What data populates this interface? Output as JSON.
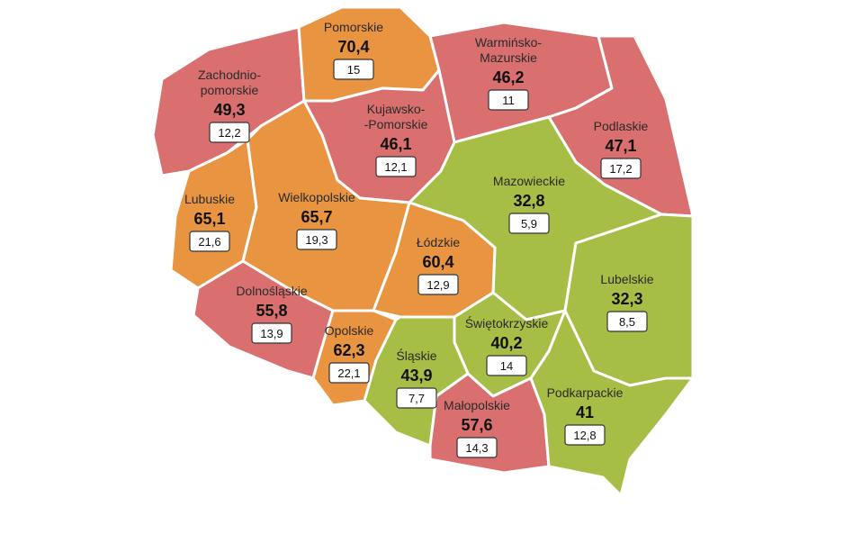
{
  "colors": {
    "red": "#d9706f",
    "orange": "#e99440",
    "green": "#a6bd46"
  },
  "regions": {
    "pomorskie": {
      "name_lines": [
        "Pomorskie"
      ],
      "value": "70,4",
      "box": "15",
      "color": "orange"
    },
    "warminsko": {
      "name_lines": [
        "Warmińsko-",
        "Mazurskie"
      ],
      "value": "46,2",
      "box": "11",
      "color": "red"
    },
    "zachodniopomorskie": {
      "name_lines": [
        "Zachodnio-",
        "pomorskie"
      ],
      "value": "49,3",
      "box": "12,2",
      "color": "red"
    },
    "kujawsko": {
      "name_lines": [
        "Kujawsko-",
        "-Pomorskie"
      ],
      "value": "46,1",
      "box": "12,1",
      "color": "red"
    },
    "podlaskie": {
      "name_lines": [
        "Podlaskie"
      ],
      "value": "47,1",
      "box": "17,2",
      "color": "red"
    },
    "mazowieckie": {
      "name_lines": [
        "Mazowieckie"
      ],
      "value": "32,8",
      "box": "5,9",
      "color": "green"
    },
    "lubuskie": {
      "name_lines": [
        "Lubuskie"
      ],
      "value": "65,1",
      "box": "21,6",
      "color": "orange"
    },
    "wielkopolskie": {
      "name_lines": [
        "Wielkopolskie"
      ],
      "value": "65,7",
      "box": "19,3",
      "color": "orange"
    },
    "lodzkie": {
      "name_lines": [
        "Łódzkie"
      ],
      "value": "60,4",
      "box": "12,9",
      "color": "orange"
    },
    "lubelskie": {
      "name_lines": [
        "Lubelskie"
      ],
      "value": "32,3",
      "box": "8,5",
      "color": "green"
    },
    "dolnoslaskie": {
      "name_lines": [
        "Dolnośląskie"
      ],
      "value": "55,8",
      "box": "13,9",
      "color": "red"
    },
    "swietokrzyskie": {
      "name_lines": [
        "Świętokrzyskie"
      ],
      "value": "40,2",
      "box": "14",
      "color": "green"
    },
    "opolskie": {
      "name_lines": [
        "Opolskie"
      ],
      "value": "62,3",
      "box": "22,1",
      "color": "orange"
    },
    "slaskie": {
      "name_lines": [
        "Śląskie"
      ],
      "value": "43,9",
      "box": "7,7",
      "color": "green"
    },
    "malopolskie": {
      "name_lines": [
        "Małopolskie"
      ],
      "value": "57,6",
      "box": "14,3",
      "color": "red"
    },
    "podkarpackie": {
      "name_lines": [
        "Podkarpackie"
      ],
      "value": "41",
      "box": "12,8",
      "color": "green"
    }
  }
}
